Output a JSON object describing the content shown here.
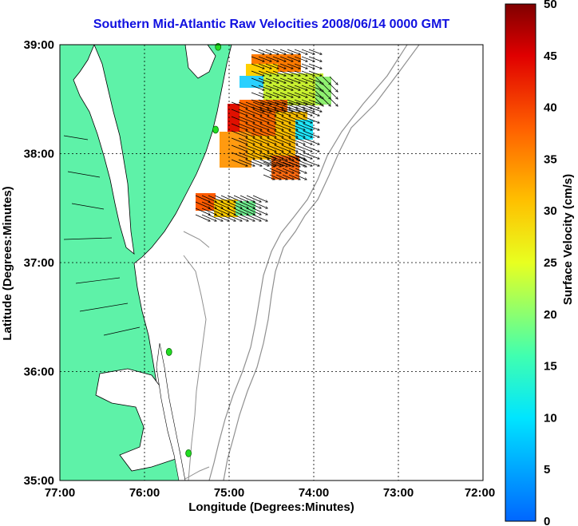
{
  "map": {
    "title": "Southern Mid-Atlantic Raw Velocities 2008/06/14 0000 GMT",
    "x_label": "Longitude (Degrees:Minutes)",
    "y_label": "Latitude (Degrees:Minutes)",
    "x_ticks": [
      "77:00",
      "76:00",
      "75:00",
      "74:00",
      "73:00",
      "72:00"
    ],
    "y_ticks": [
      "39:00",
      "38:00",
      "37:00",
      "36:00",
      "35:00"
    ],
    "lon_range": [
      -77,
      -72
    ],
    "lat_range": [
      35,
      39
    ],
    "land_color": "#5ef2a8",
    "contour_color": "#909090",
    "station_color": "#22dd22",
    "stations": [
      {
        "lon": -75.13,
        "lat": 38.98
      },
      {
        "lon": -75.16,
        "lat": 38.22
      },
      {
        "lon": -75.71,
        "lat": 36.18
      },
      {
        "lon": -75.48,
        "lat": 35.25
      }
    ]
  },
  "colorbar": {
    "label": "Surface Velocity (cm/s)",
    "min": 0,
    "max": 50,
    "ticks": [
      "50",
      "45",
      "40",
      "35",
      "30",
      "25",
      "20",
      "15",
      "10",
      "5",
      "0"
    ]
  }
}
